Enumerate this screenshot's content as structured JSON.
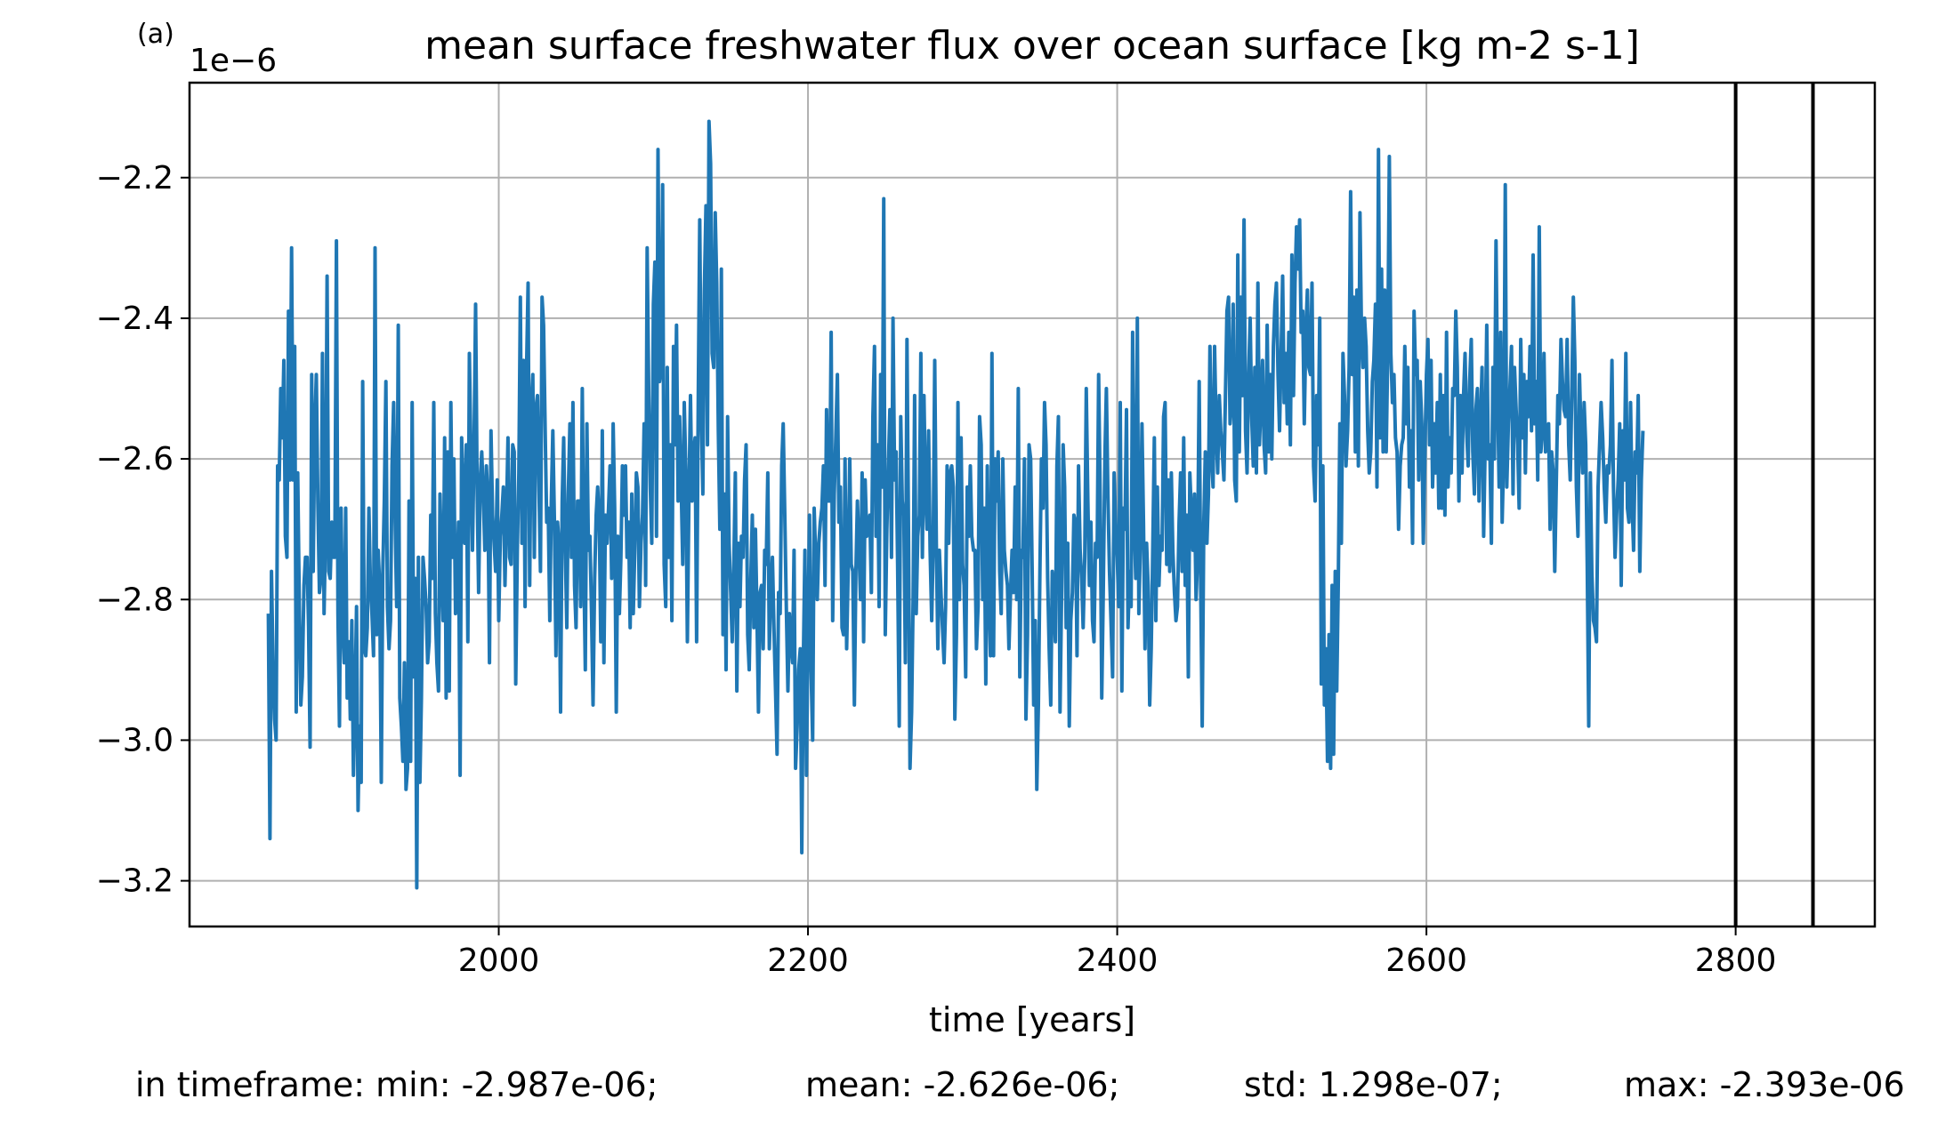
{
  "chart_data": {
    "type": "line",
    "panel_label": "(a)",
    "title": "mean surface freshwater flux over ocean surface [kg m-2 s-1]",
    "offset_text": "1e−6",
    "xlabel": "time [years]",
    "ylabel": "",
    "xlim": [
      1800,
      2890
    ],
    "ylim": [
      -3.265,
      -2.065
    ],
    "xticks": [
      2000,
      2200,
      2400,
      2600,
      2800
    ],
    "xtick_labels": [
      "2000",
      "2200",
      "2400",
      "2600",
      "2800"
    ],
    "yticks": [
      -2.2,
      -2.4,
      -2.6,
      -2.8,
      -3.0,
      -3.2
    ],
    "ytick_labels": [
      "−2.2",
      "−2.4",
      "−2.6",
      "−2.8",
      "−3.0",
      "−3.2"
    ],
    "grid": true,
    "legend": "none",
    "series_color": "#1f77b4",
    "vlines": [
      2800,
      2850
    ],
    "series": [
      {
        "x_start": 1851,
        "x_step": 1,
        "values": [
          -2.82,
          -3.14,
          -2.76,
          -2.89,
          -2.97,
          -3.0,
          -2.61,
          -2.63,
          -2.5,
          -2.57,
          -2.46,
          -2.71,
          -2.74,
          -2.39,
          -2.63,
          -2.3,
          -2.63,
          -2.44,
          -2.96,
          -2.62,
          -2.81,
          -2.95,
          -2.91,
          -2.78,
          -2.74,
          -2.74,
          -2.84,
          -3.01,
          -2.48,
          -2.76,
          -2.56,
          -2.48,
          -2.66,
          -2.79,
          -2.77,
          -2.45,
          -2.82,
          -2.7,
          -2.34,
          -2.76,
          -2.77,
          -2.69,
          -2.74,
          -2.74,
          -2.29,
          -2.82,
          -2.98,
          -2.67,
          -2.83,
          -2.89,
          -2.67,
          -2.94,
          -2.86,
          -2.97,
          -2.83,
          -3.05,
          -2.95,
          -2.81,
          -3.1,
          -2.98,
          -3.06,
          -2.49,
          -2.87,
          -2.88,
          -2.84,
          -2.67,
          -2.78,
          -2.82,
          -2.88,
          -2.3,
          -2.85,
          -2.73,
          -2.78,
          -3.06,
          -2.76,
          -2.66,
          -2.49,
          -2.81,
          -2.87,
          -2.83,
          -2.61,
          -2.52,
          -2.69,
          -2.81,
          -2.41,
          -2.94,
          -2.98,
          -3.03,
          -2.89,
          -3.07,
          -3.04,
          -2.66,
          -3.03,
          -2.52,
          -2.91,
          -2.77,
          -3.21,
          -2.74,
          -3.06,
          -2.94,
          -2.74,
          -2.77,
          -2.81,
          -2.89,
          -2.86,
          -2.68,
          -2.77,
          -2.52,
          -2.82,
          -2.89,
          -2.93,
          -2.65,
          -2.75,
          -2.83,
          -2.57,
          -2.94,
          -2.59,
          -2.93,
          -2.52,
          -2.74,
          -2.6,
          -2.82,
          -2.78,
          -2.69,
          -3.05,
          -2.57,
          -2.65,
          -2.72,
          -2.58,
          -2.86,
          -2.45,
          -2.59,
          -2.73,
          -2.59,
          -2.38,
          -2.64,
          -2.79,
          -2.63,
          -2.59,
          -2.65,
          -2.73,
          -2.61,
          -2.66,
          -2.89,
          -2.56,
          -2.68,
          -2.72,
          -2.76,
          -2.63,
          -2.83,
          -2.71,
          -2.68,
          -2.64,
          -2.78,
          -2.68,
          -2.57,
          -2.74,
          -2.75,
          -2.58,
          -2.59,
          -2.92,
          -2.73,
          -2.62,
          -2.37,
          -2.72,
          -2.46,
          -2.81,
          -2.47,
          -2.35,
          -2.78,
          -2.53,
          -2.48,
          -2.74,
          -2.53,
          -2.51,
          -2.64,
          -2.76,
          -2.37,
          -2.41,
          -2.56,
          -2.69,
          -2.67,
          -2.83,
          -2.66,
          -2.56,
          -2.69,
          -2.88,
          -2.69,
          -2.72,
          -2.96,
          -2.66,
          -2.57,
          -2.72,
          -2.84,
          -2.65,
          -2.55,
          -2.74,
          -2.52,
          -2.78,
          -2.84,
          -2.66,
          -2.66,
          -2.81,
          -2.5,
          -2.75,
          -2.9,
          -2.55,
          -2.73,
          -2.71,
          -2.82,
          -2.95,
          -2.77,
          -2.68,
          -2.64,
          -2.69,
          -2.86,
          -2.56,
          -2.89,
          -2.68,
          -2.72,
          -2.67,
          -2.61,
          -2.77,
          -2.55,
          -2.67,
          -2.96,
          -2.71,
          -2.82,
          -2.74,
          -2.61,
          -2.68,
          -2.61,
          -2.74,
          -2.69,
          -2.84,
          -2.65,
          -2.82,
          -2.73,
          -2.62,
          -2.64,
          -2.81,
          -2.72,
          -2.68,
          -2.55,
          -2.78,
          -2.3,
          -2.51,
          -2.64,
          -2.72,
          -2.38,
          -2.32,
          -2.71,
          -2.16,
          -2.49,
          -2.47,
          -2.21,
          -2.75,
          -2.81,
          -2.47,
          -2.74,
          -2.58,
          -2.83,
          -2.44,
          -2.58,
          -2.41,
          -2.66,
          -2.54,
          -2.64,
          -2.75,
          -2.52,
          -2.62,
          -2.86,
          -2.66,
          -2.51,
          -2.66,
          -2.59,
          -2.57,
          -2.86,
          -2.52,
          -2.26,
          -2.54,
          -2.65,
          -2.36,
          -2.24,
          -2.58,
          -2.12,
          -2.18,
          -2.45,
          -2.47,
          -2.25,
          -2.35,
          -2.56,
          -2.7,
          -2.33,
          -2.85,
          -2.65,
          -2.9,
          -2.54,
          -2.72,
          -2.79,
          -2.86,
          -2.76,
          -2.62,
          -2.93,
          -2.72,
          -2.81,
          -2.71,
          -2.74,
          -2.63,
          -2.58,
          -2.85,
          -2.9,
          -2.77,
          -2.68,
          -2.84,
          -2.7,
          -2.82,
          -2.96,
          -2.79,
          -2.78,
          -2.87,
          -2.73,
          -2.75,
          -2.62,
          -2.87,
          -2.79,
          -2.74,
          -2.84,
          -2.93,
          -3.02,
          -2.79,
          -2.82,
          -2.61,
          -2.55,
          -2.68,
          -2.81,
          -2.93,
          -2.82,
          -2.86,
          -2.89,
          -2.73,
          -3.04,
          -2.98,
          -2.9,
          -2.87,
          -3.16,
          -2.89,
          -2.73,
          -3.05,
          -2.84,
          -2.68,
          -2.9,
          -3.0,
          -2.67,
          -2.74,
          -2.8,
          -2.72,
          -2.69,
          -2.67,
          -2.61,
          -2.78,
          -2.53,
          -2.66,
          -2.66,
          -2.42,
          -2.83,
          -2.65,
          -2.57,
          -2.48,
          -2.69,
          -2.64,
          -2.84,
          -2.85,
          -2.6,
          -2.87,
          -2.76,
          -2.6,
          -2.75,
          -2.76,
          -2.95,
          -2.76,
          -2.66,
          -2.73,
          -2.8,
          -2.62,
          -2.86,
          -2.63,
          -2.71,
          -2.7,
          -2.68,
          -2.79,
          -2.54,
          -2.44,
          -2.71,
          -2.58,
          -2.81,
          -2.48,
          -2.64,
          -2.23,
          -2.85,
          -2.7,
          -2.61,
          -2.53,
          -2.74,
          -2.4,
          -2.63,
          -2.59,
          -2.75,
          -2.98,
          -2.54,
          -2.66,
          -2.68,
          -2.89,
          -2.43,
          -2.7,
          -3.04,
          -2.96,
          -2.8,
          -2.51,
          -2.82,
          -2.71,
          -2.68,
          -2.45,
          -2.74,
          -2.51,
          -2.65,
          -2.7,
          -2.56,
          -2.73,
          -2.83,
          -2.72,
          -2.46,
          -2.72,
          -2.87,
          -2.73,
          -2.79,
          -2.84,
          -2.89,
          -2.81,
          -2.61,
          -2.72,
          -2.62,
          -2.61,
          -2.64,
          -2.97,
          -2.85,
          -2.52,
          -2.8,
          -2.57,
          -2.75,
          -2.78,
          -2.91,
          -2.64,
          -2.71,
          -2.61,
          -2.71,
          -2.73,
          -2.73,
          -2.87,
          -2.81,
          -2.54,
          -2.58,
          -2.8,
          -2.67,
          -2.92,
          -2.61,
          -2.79,
          -2.88,
          -2.45,
          -2.88,
          -2.6,
          -2.66,
          -2.59,
          -2.76,
          -2.82,
          -2.6,
          -2.73,
          -2.76,
          -2.78,
          -2.87,
          -2.79,
          -2.73,
          -2.79,
          -2.64,
          -2.8,
          -2.5,
          -2.91,
          -2.73,
          -2.74,
          -2.6,
          -2.97,
          -2.85,
          -2.58,
          -2.6,
          -2.76,
          -2.95,
          -2.83,
          -3.07,
          -2.95,
          -2.76,
          -2.6,
          -2.67,
          -2.52,
          -2.58,
          -2.77,
          -2.87,
          -2.95,
          -2.76,
          -2.79,
          -2.86,
          -2.61,
          -2.54,
          -2.96,
          -2.8,
          -2.58,
          -2.64,
          -2.84,
          -2.72,
          -2.98,
          -2.83,
          -2.79,
          -2.68,
          -2.69,
          -2.88,
          -2.61,
          -2.73,
          -2.77,
          -2.84,
          -2.74,
          -2.5,
          -2.66,
          -2.78,
          -2.69,
          -2.83,
          -2.86,
          -2.72,
          -2.74,
          -2.48,
          -2.66,
          -2.94,
          -2.79,
          -2.6,
          -2.5,
          -2.65,
          -2.76,
          -2.83,
          -2.91,
          -2.62,
          -2.69,
          -2.74,
          -2.81,
          -2.52,
          -2.93,
          -2.67,
          -2.7,
          -2.53,
          -2.84,
          -2.76,
          -2.81,
          -2.42,
          -2.69,
          -2.77,
          -2.4,
          -2.82,
          -2.72,
          -2.55,
          -2.69,
          -2.87,
          -2.72,
          -2.78,
          -2.95,
          -2.87,
          -2.73,
          -2.57,
          -2.83,
          -2.64,
          -2.78,
          -2.71,
          -2.73,
          -2.54,
          -2.52,
          -2.75,
          -2.63,
          -2.76,
          -2.62,
          -2.73,
          -2.79,
          -2.83,
          -2.81,
          -2.69,
          -2.62,
          -2.76,
          -2.57,
          -2.78,
          -2.68,
          -2.91,
          -2.62,
          -2.68,
          -2.73,
          -2.65,
          -2.8,
          -2.74,
          -2.49,
          -2.78,
          -2.98,
          -2.69,
          -2.59,
          -2.72,
          -2.65,
          -2.44,
          -2.6,
          -2.64,
          -2.44,
          -2.56,
          -2.62,
          -2.51,
          -2.56,
          -2.59,
          -2.63,
          -2.51,
          -2.39,
          -2.37,
          -2.55,
          -2.52,
          -2.38,
          -2.63,
          -2.66,
          -2.31,
          -2.59,
          -2.37,
          -2.51,
          -2.26,
          -2.56,
          -2.62,
          -2.48,
          -2.4,
          -2.54,
          -2.61,
          -2.47,
          -2.62,
          -2.35,
          -2.58,
          -2.52,
          -2.46,
          -2.58,
          -2.62,
          -2.41,
          -2.59,
          -2.48,
          -2.6,
          -2.44,
          -2.38,
          -2.35,
          -2.48,
          -2.56,
          -2.45,
          -2.34,
          -2.52,
          -2.45,
          -2.55,
          -2.42,
          -2.58,
          -2.31,
          -2.51,
          -2.35,
          -2.27,
          -2.33,
          -2.26,
          -2.42,
          -2.39,
          -2.55,
          -2.42,
          -2.36,
          -2.47,
          -2.48,
          -2.35,
          -2.61,
          -2.66,
          -2.51,
          -2.58,
          -2.4,
          -2.92,
          -2.61,
          -2.95,
          -2.87,
          -3.03,
          -2.85,
          -3.04,
          -2.78,
          -3.02,
          -2.76,
          -2.93,
          -2.78,
          -2.55,
          -2.72,
          -2.45,
          -2.51,
          -2.61,
          -2.56,
          -2.47,
          -2.22,
          -2.48,
          -2.37,
          -2.59,
          -2.36,
          -2.61,
          -2.25,
          -2.42,
          -2.47,
          -2.4,
          -2.44,
          -2.56,
          -2.62,
          -2.59,
          -2.49,
          -2.46,
          -2.38,
          -2.64,
          -2.16,
          -2.57,
          -2.33,
          -2.59,
          -2.36,
          -2.59,
          -2.44,
          -2.17,
          -2.45,
          -2.52,
          -2.48,
          -2.57,
          -2.59,
          -2.7,
          -2.61,
          -2.58,
          -2.57,
          -2.44,
          -2.55,
          -2.47,
          -2.64,
          -2.56,
          -2.72,
          -2.39,
          -2.48,
          -2.46,
          -2.63,
          -2.49,
          -2.55,
          -2.72,
          -2.59,
          -2.48,
          -2.43,
          -2.58,
          -2.46,
          -2.64,
          -2.55,
          -2.62,
          -2.52,
          -2.67,
          -2.48,
          -2.67,
          -2.51,
          -2.68,
          -2.42,
          -2.64,
          -2.57,
          -2.62,
          -2.5,
          -2.51,
          -2.39,
          -2.47,
          -2.66,
          -2.51,
          -2.62,
          -2.51,
          -2.45,
          -2.56,
          -2.61,
          -2.49,
          -2.43,
          -2.59,
          -2.65,
          -2.53,
          -2.5,
          -2.66,
          -2.55,
          -2.47,
          -2.71,
          -2.58,
          -2.41,
          -2.6,
          -2.58,
          -2.72,
          -2.47,
          -2.6,
          -2.29,
          -2.5,
          -2.64,
          -2.42,
          -2.69,
          -2.59,
          -2.21,
          -2.64,
          -2.55,
          -2.5,
          -2.44,
          -2.65,
          -2.47,
          -2.53,
          -2.58,
          -2.67,
          -2.43,
          -2.57,
          -2.48,
          -2.62,
          -2.49,
          -2.54,
          -2.44,
          -2.56,
          -2.31,
          -2.55,
          -2.49,
          -2.63,
          -2.27,
          -2.59,
          -2.56,
          -2.45,
          -2.59,
          -2.58,
          -2.55,
          -2.7,
          -2.59,
          -2.62,
          -2.76,
          -2.63,
          -2.51,
          -2.55,
          -2.43,
          -2.49,
          -2.53,
          -2.54,
          -2.43,
          -2.58,
          -2.63,
          -2.51,
          -2.37,
          -2.46,
          -2.64,
          -2.71,
          -2.48,
          -2.57,
          -2.62,
          -2.52,
          -2.58,
          -2.75,
          -2.98,
          -2.62,
          -2.76,
          -2.83,
          -2.84,
          -2.86,
          -2.64,
          -2.58,
          -2.52,
          -2.57,
          -2.64,
          -2.69,
          -2.61,
          -2.62,
          -2.58,
          -2.46,
          -2.64,
          -2.74,
          -2.68,
          -2.63,
          -2.55,
          -2.78,
          -2.56,
          -2.63,
          -2.45,
          -2.67,
          -2.69,
          -2.52,
          -2.66,
          -2.73,
          -2.59,
          -2.62,
          -2.51,
          -2.76,
          -2.63,
          -2.56
        ]
      }
    ]
  },
  "stats": {
    "min": "in timeframe: min: -2.987e-06;",
    "mean": "mean: -2.626e-06;",
    "std": "std: 1.298e-07;",
    "max": "max: -2.393e-06"
  }
}
